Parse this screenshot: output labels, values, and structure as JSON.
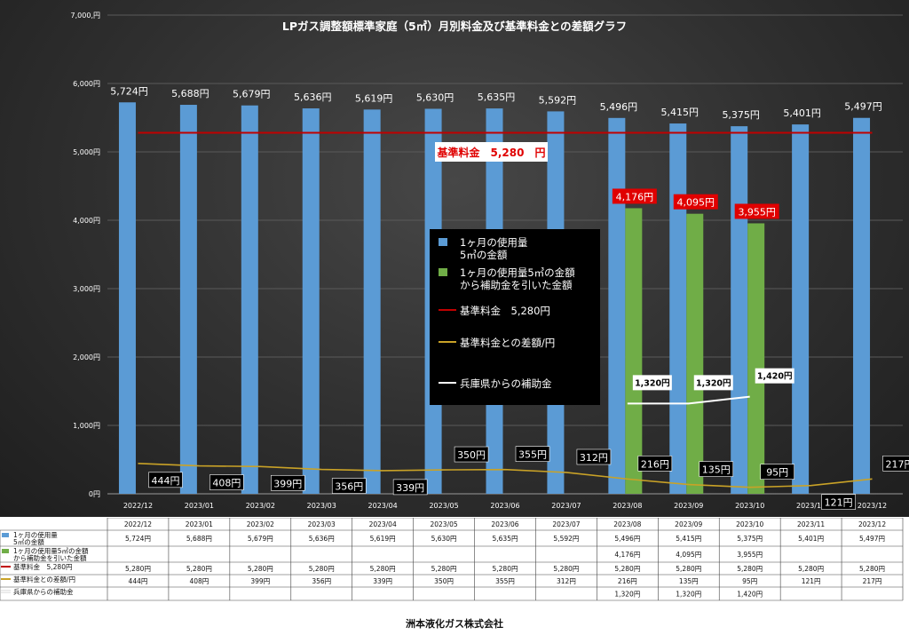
{
  "chart_data": {
    "type": "bar",
    "title": "LPガス調整額標準家庭（5㎥）月別料金及び基準料金との差額グラフ",
    "categories": [
      "2022/12",
      "2023/01",
      "2023/02",
      "2023/03",
      "2023/04",
      "2023/05",
      "2023/06",
      "2023/07",
      "2023/08",
      "2023/09",
      "2023/10",
      "2023/11",
      "2023/12"
    ],
    "y_ticks": [
      "0円",
      "1,000円",
      "2,000円",
      "3,000円",
      "4,000円",
      "5,000円",
      "6,000円",
      "7,000,円"
    ],
    "ylim": [
      0,
      7000
    ],
    "series": [
      {
        "name": "1ヶ月の使用量5㎥の金額",
        "type": "bar",
        "color": "#5b9bd5",
        "values": [
          5724,
          5688,
          5679,
          5636,
          5619,
          5630,
          5635,
          5592,
          5496,
          5415,
          5375,
          5401,
          5497
        ],
        "labels": [
          "5,724円",
          "5,688円",
          "5,679円",
          "5,636円",
          "5,619円",
          "5,630円",
          "5,635円",
          "5,592円",
          "5,496円",
          "5,415円",
          "5,375円",
          "5,401円",
          "5,497円"
        ]
      },
      {
        "name": "1ヶ月の使用量5㎥の金額から補助金を引いた金額",
        "type": "bar",
        "color": "#70ad47",
        "values": [
          null,
          null,
          null,
          null,
          null,
          null,
          null,
          null,
          4176,
          4095,
          3955,
          null,
          null
        ],
        "labels": [
          "",
          "",
          "",
          "",
          "",
          "",
          "",
          "",
          "4,176円",
          "4,095円",
          "3,955円",
          "",
          ""
        ]
      },
      {
        "name": "基準料金　5,280円",
        "type": "line",
        "color": "#c00000",
        "values": [
          5280,
          5280,
          5280,
          5280,
          5280,
          5280,
          5280,
          5280,
          5280,
          5280,
          5280,
          5280,
          5280
        ]
      },
      {
        "name": "基準料金との差額/円",
        "type": "line",
        "color": "#c9a227",
        "values": [
          444,
          408,
          399,
          356,
          339,
          350,
          355,
          312,
          216,
          135,
          95,
          121,
          217
        ],
        "labels": [
          "444円",
          "408円",
          "399円",
          "356円",
          "339円",
          "350円",
          "355円",
          "312円",
          "216円",
          "135円",
          "95円",
          "121円",
          "217円"
        ]
      },
      {
        "name": "兵庫県からの補助金",
        "type": "line",
        "color": "#ffffff",
        "values": [
          null,
          null,
          null,
          null,
          null,
          null,
          null,
          null,
          1320,
          1320,
          1420,
          null,
          null
        ],
        "labels": [
          "",
          "",
          "",
          "",
          "",
          "",
          "",
          "",
          "1,320円",
          "1,320円",
          "1,420円",
          "",
          ""
        ]
      }
    ],
    "annotation": "基準料金　5,280　円",
    "legend": {
      "placement": "center",
      "items": [
        {
          "text": "1ヶ月の使用量",
          "text2": "5㎥の金額",
          "color": "#5b9bd5",
          "kind": "bar"
        },
        {
          "text": "1ヶ月の使用量5㎥の金額",
          "text2": "から補助金を引いた金額",
          "color": "#70ad47",
          "kind": "bar"
        },
        {
          "text": "基準料金　5,280円",
          "text2": "",
          "color": "#c00000",
          "kind": "line"
        },
        {
          "text": "基準料金との差額/円",
          "text2": "",
          "color": "#c9a227",
          "kind": "line"
        },
        {
          "text": "兵庫県からの補助金",
          "text2": "",
          "color": "#ffffff",
          "kind": "line"
        }
      ]
    }
  },
  "table": {
    "rows": [
      {
        "name": "1ヶ月の使用量",
        "name2": "5㎥の金額",
        "color": "#5b9bd5",
        "kind": "bar",
        "cells": [
          "5,724円",
          "5,688円",
          "5,679円",
          "5,636円",
          "5,619円",
          "5,630円",
          "5,635円",
          "5,592円",
          "5,496円",
          "5,415円",
          "5,375円",
          "5,401円",
          "5,497円"
        ]
      },
      {
        "name": "1ヶ月の使用量5㎥の金額",
        "name2": "から補助金を引いた金額",
        "color": "#70ad47",
        "kind": "bar",
        "cells": [
          "",
          "",
          "",
          "",
          "",
          "",
          "",
          "",
          "4,176円",
          "4,095円",
          "3,955円",
          "",
          ""
        ]
      },
      {
        "name": "基準料金　5,280円",
        "name2": "",
        "color": "#c00000",
        "kind": "line",
        "cells": [
          "5,280円",
          "5,280円",
          "5,280円",
          "5,280円",
          "5,280円",
          "5,280円",
          "5,280円",
          "5,280円",
          "5,280円",
          "5,280円",
          "5,280円",
          "5,280円",
          "5,280円"
        ]
      },
      {
        "name": "基準料金との差額/円",
        "name2": "",
        "color": "#c9a227",
        "kind": "line",
        "cells": [
          "444円",
          "408円",
          "399円",
          "356円",
          "339円",
          "350円",
          "355円",
          "312円",
          "216円",
          "135円",
          "95円",
          "121円",
          "217円"
        ]
      },
      {
        "name": "兵庫県からの補助金",
        "name2": "",
        "color": "#ffffff",
        "kind": "line",
        "cells": [
          "",
          "",
          "",
          "",
          "",
          "",
          "",
          "",
          "1,320円",
          "1,320円",
          "1,420円",
          "",
          ""
        ]
      }
    ]
  },
  "footer": "洲本液化ガス株式会社"
}
